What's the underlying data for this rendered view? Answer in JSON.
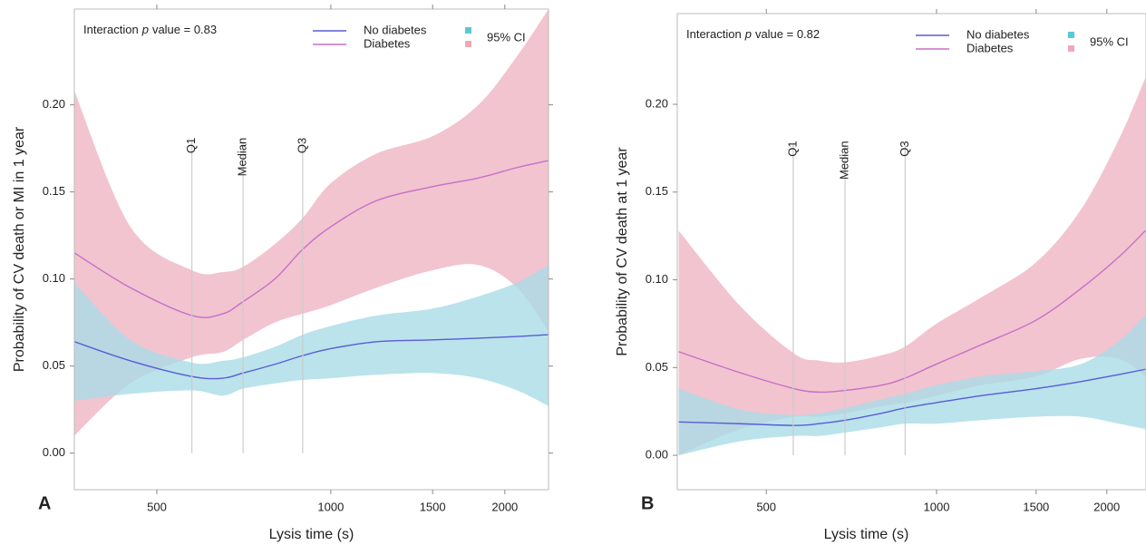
{
  "chart_data": [
    {
      "type": "line",
      "panel_label": "A",
      "annotation_prefix": "Interaction",
      "annotation_var": "p",
      "annotation_suffix": "value = 0.83",
      "x_label": "Lysis time (s)",
      "y_label": "Probability of CV death or MI in 1 year",
      "x_scale": "log",
      "xlim": [
        360,
        2380
      ],
      "xticks": [
        500,
        1000,
        1500,
        2000
      ],
      "ylim": [
        -0.021,
        0.255
      ],
      "yticks": [
        {
          "value": 0,
          "label": "0.00"
        },
        {
          "value": 0.05,
          "label": "0.05"
        },
        {
          "value": 0.1,
          "label": "0.10"
        },
        {
          "value": 0.15,
          "label": "0.15"
        },
        {
          "value": 0.2,
          "label": "0.20"
        }
      ],
      "ci_label": "95% CI",
      "x": [
        360,
        450,
        575,
        650,
        705,
        800,
        894,
        1000,
        1200,
        1500,
        1800,
        2100,
        2380
      ],
      "series": [
        {
          "name": "Diabetes",
          "color": "#c56fc9",
          "ci_color": "#f2c4cf",
          "legend_ci_color": "#f0a8b8",
          "values": [
            0.115,
            0.095,
            0.079,
            0.08,
            0.087,
            0.1,
            0.117,
            0.13,
            0.145,
            0.153,
            0.158,
            0.164,
            0.168
          ],
          "lower": [
            0.01,
            0.04,
            0.055,
            0.058,
            0.065,
            0.075,
            0.08,
            0.085,
            0.095,
            0.105,
            0.108,
            0.095,
            0.07
          ],
          "upper": [
            0.208,
            0.13,
            0.105,
            0.104,
            0.107,
            0.12,
            0.135,
            0.155,
            0.172,
            0.182,
            0.2,
            0.228,
            0.255
          ]
        },
        {
          "name": "No diabetes",
          "color": "#5b5bd6",
          "ci_color": "#a9dce6",
          "legend_ci_color": "#5bc8d8",
          "values": [
            0.064,
            0.053,
            0.044,
            0.043,
            0.046,
            0.051,
            0.056,
            0.06,
            0.064,
            0.065,
            0.066,
            0.067,
            0.068
          ],
          "lower": [
            0.03,
            0.034,
            0.036,
            0.033,
            0.037,
            0.04,
            0.042,
            0.043,
            0.045,
            0.046,
            0.043,
            0.036,
            0.027
          ],
          "upper": [
            0.098,
            0.065,
            0.052,
            0.053,
            0.055,
            0.061,
            0.068,
            0.073,
            0.079,
            0.083,
            0.09,
            0.098,
            0.108
          ]
        }
      ],
      "quartiles": [
        {
          "label": "Q1",
          "x": 575
        },
        {
          "label": "Median",
          "x": 705
        },
        {
          "label": "Q3",
          "x": 894
        }
      ]
    },
    {
      "type": "line",
      "panel_label": "B",
      "annotation_prefix": "Interaction",
      "annotation_var": "p",
      "annotation_suffix": "value = 0.82",
      "x_label": "Lysis time (s)",
      "y_label": "Probability of CV death at 1 year",
      "x_scale": "log",
      "xlim": [
        348,
        2346
      ],
      "xticks": [
        500,
        1000,
        1500,
        2000
      ],
      "ylim": [
        -0.0196,
        0.2517
      ],
      "yticks": [
        {
          "value": 0,
          "label": "0.00"
        },
        {
          "value": 0.05,
          "label": "0.05"
        },
        {
          "value": 0.1,
          "label": "0.10"
        },
        {
          "value": 0.15,
          "label": "0.15"
        },
        {
          "value": 0.2,
          "label": "0.20"
        }
      ],
      "ci_label": "95% CI",
      "x": [
        350,
        450,
        560,
        620,
        690,
        800,
        880,
        1000,
        1200,
        1500,
        1800,
        2100,
        2340
      ],
      "series": [
        {
          "name": "Diabetes",
          "color": "#c56fc9",
          "ci_color": "#f2c4cf",
          "legend_ci_color": "#f0a8b8",
          "values": [
            0.059,
            0.047,
            0.038,
            0.036,
            0.037,
            0.04,
            0.044,
            0.052,
            0.063,
            0.077,
            0.095,
            0.113,
            0.128
          ],
          "lower": [
            0,
            0.015,
            0.022,
            0.022,
            0.024,
            0.028,
            0.03,
            0.034,
            0.04,
            0.045,
            0.055,
            0.055,
            0.045
          ],
          "upper": [
            0.128,
            0.085,
            0.058,
            0.054,
            0.053,
            0.057,
            0.062,
            0.075,
            0.09,
            0.11,
            0.14,
            0.18,
            0.215
          ]
        },
        {
          "name": "No diabetes",
          "color": "#5b5bd6",
          "ci_color": "#a9dce6",
          "legend_ci_color": "#5bc8d8",
          "values": [
            0.019,
            0.018,
            0.017,
            0.018,
            0.02,
            0.024,
            0.027,
            0.03,
            0.034,
            0.038,
            0.042,
            0.046,
            0.049
          ],
          "lower": [
            0,
            0.008,
            0.011,
            0.011,
            0.013,
            0.016,
            0.018,
            0.018,
            0.02,
            0.022,
            0.022,
            0.018,
            0.015
          ],
          "upper": [
            0.038,
            0.026,
            0.023,
            0.024,
            0.027,
            0.032,
            0.035,
            0.04,
            0.045,
            0.048,
            0.052,
            0.065,
            0.08
          ]
        }
      ],
      "quartiles": [
        {
          "label": "Q1",
          "x": 558
        },
        {
          "label": "Median",
          "x": 689
        },
        {
          "label": "Q3",
          "x": 880
        }
      ]
    }
  ]
}
